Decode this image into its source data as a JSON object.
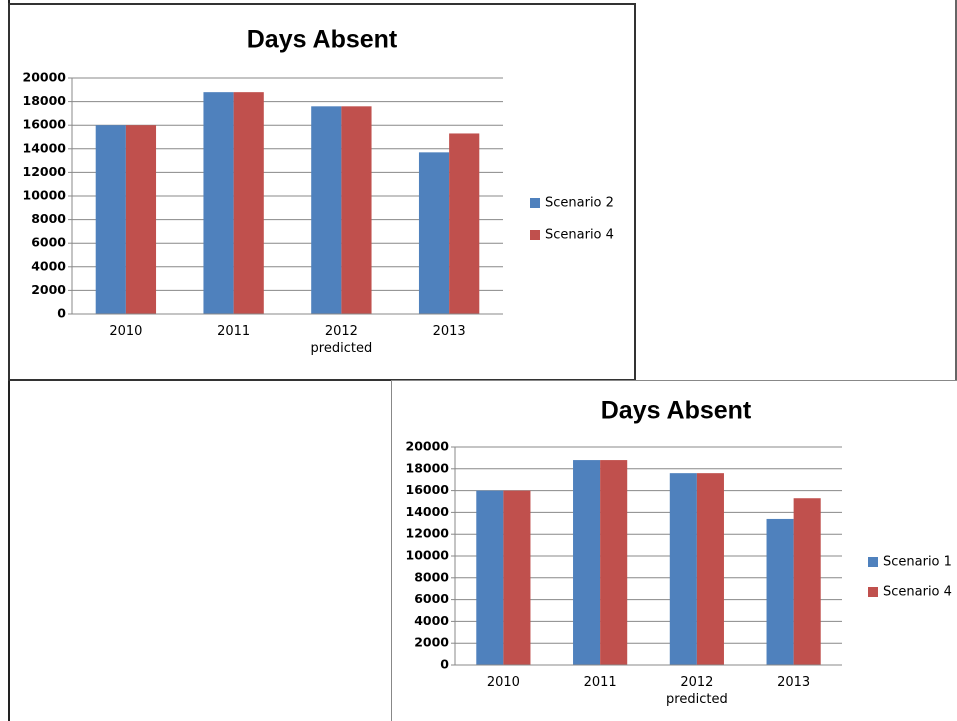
{
  "chart_data": [
    {
      "type": "bar",
      "title": "Days Absent",
      "categories": [
        "2010",
        "2011",
        "2012\npredicted",
        "2013"
      ],
      "series": [
        {
          "name": "Scenario 2",
          "color": "#4f81bd",
          "values": [
            16000,
            18800,
            17600,
            13700
          ]
        },
        {
          "name": "Scenario 4",
          "color": "#c0504d",
          "values": [
            16000,
            18800,
            17600,
            15300
          ]
        }
      ],
      "ylim": [
        0,
        20000
      ],
      "yticks": [
        0,
        2000,
        4000,
        6000,
        8000,
        10000,
        12000,
        14000,
        16000,
        18000,
        20000
      ],
      "grid": true,
      "legend": "right"
    },
    {
      "type": "bar",
      "title": "Days Absent",
      "categories": [
        "2010",
        "2011",
        "2012\npredicted",
        "2013"
      ],
      "series": [
        {
          "name": "Scenario 1",
          "color": "#4f81bd",
          "values": [
            16000,
            18800,
            17600,
            13400
          ]
        },
        {
          "name": "Scenario 4",
          "color": "#c0504d",
          "values": [
            16000,
            18800,
            17600,
            15300
          ]
        }
      ],
      "ylim": [
        0,
        20000
      ],
      "yticks": [
        0,
        2000,
        4000,
        6000,
        8000,
        10000,
        12000,
        14000,
        16000,
        18000,
        20000
      ],
      "grid": true,
      "legend": "right"
    }
  ]
}
